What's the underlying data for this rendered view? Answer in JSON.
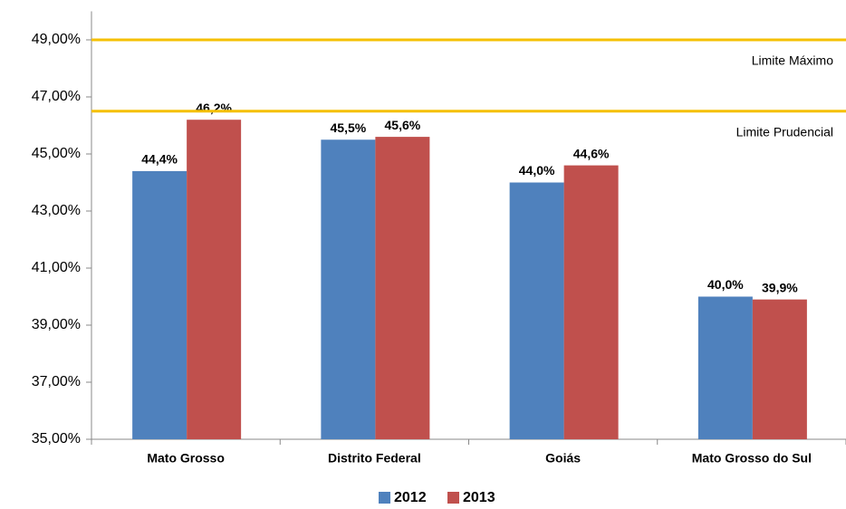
{
  "chart_data": {
    "type": "bar",
    "categories": [
      "Mato Grosso",
      "Distrito Federal",
      "Goiás",
      "Mato Grosso do Sul"
    ],
    "series": [
      {
        "name": "2012",
        "color": "#4f81bd",
        "values": [
          44.4,
          45.5,
          44.0,
          40.0
        ],
        "value_labels": [
          "44,4%",
          "45,5%",
          "44,0%",
          "40,0%"
        ]
      },
      {
        "name": "2013",
        "color": "#c0504d",
        "values": [
          46.2,
          45.6,
          44.6,
          39.9
        ],
        "value_labels": [
          "46,2%",
          "45,6%",
          "44,6%",
          "39,9%"
        ]
      }
    ],
    "ylim": [
      35,
      50
    ],
    "yticks": [
      {
        "value": 35,
        "label": "35,00%"
      },
      {
        "value": 37,
        "label": "37,00%"
      },
      {
        "value": 39,
        "label": "39,00%"
      },
      {
        "value": 41,
        "label": "41,00%"
      },
      {
        "value": 43,
        "label": "43,00%"
      },
      {
        "value": 45,
        "label": "45,00%"
      },
      {
        "value": 47,
        "label": "47,00%"
      },
      {
        "value": 49,
        "label": "49,00%"
      }
    ],
    "reference_lines": [
      {
        "value": 49,
        "label": "Limite Máximo",
        "color": "#f5c000"
      },
      {
        "value": 46.5,
        "label": "Limite Prudencial",
        "color": "#f5c000"
      }
    ],
    "legend": "bottom"
  }
}
